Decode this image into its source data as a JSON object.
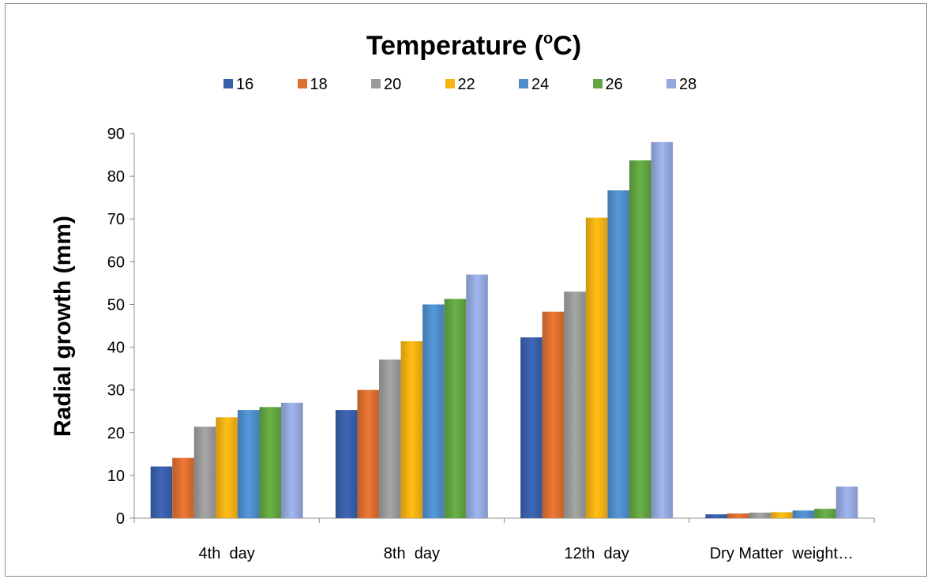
{
  "chart_data": {
    "type": "bar",
    "title": "Temperature (",
    "title_sup": "o",
    "title_suffix": "C)",
    "ylabel": "Radial growth (mm)",
    "xlabel": "",
    "categories": [
      "4th  day",
      "8th  day",
      "12th  day",
      "Dry Matter  weight…"
    ],
    "ylim": [
      0,
      90
    ],
    "yticks": [
      0,
      10,
      20,
      30,
      40,
      50,
      60,
      70,
      80,
      90
    ],
    "grid": false,
    "legend_position": "top",
    "series": [
      {
        "name": "16",
        "color": "#3a5faa",
        "values": [
          12.1,
          25.3,
          42.3,
          0.9
        ]
      },
      {
        "name": "18",
        "color": "#dd6f31",
        "values": [
          14.1,
          30.0,
          48.3,
          1.1
        ]
      },
      {
        "name": "20",
        "color": "#9b9b9b",
        "values": [
          21.4,
          37.1,
          53.0,
          1.3
        ]
      },
      {
        "name": "22",
        "color": "#f7b213",
        "values": [
          23.6,
          41.4,
          70.3,
          1.4
        ]
      },
      {
        "name": "24",
        "color": "#4f8ecb",
        "values": [
          25.3,
          50.0,
          76.7,
          1.8
        ]
      },
      {
        "name": "26",
        "color": "#62a542",
        "values": [
          26.0,
          51.3,
          83.7,
          2.2
        ]
      },
      {
        "name": "28",
        "color": "#95a9df",
        "values": [
          27.0,
          57.0,
          88.0,
          7.4
        ]
      }
    ]
  }
}
